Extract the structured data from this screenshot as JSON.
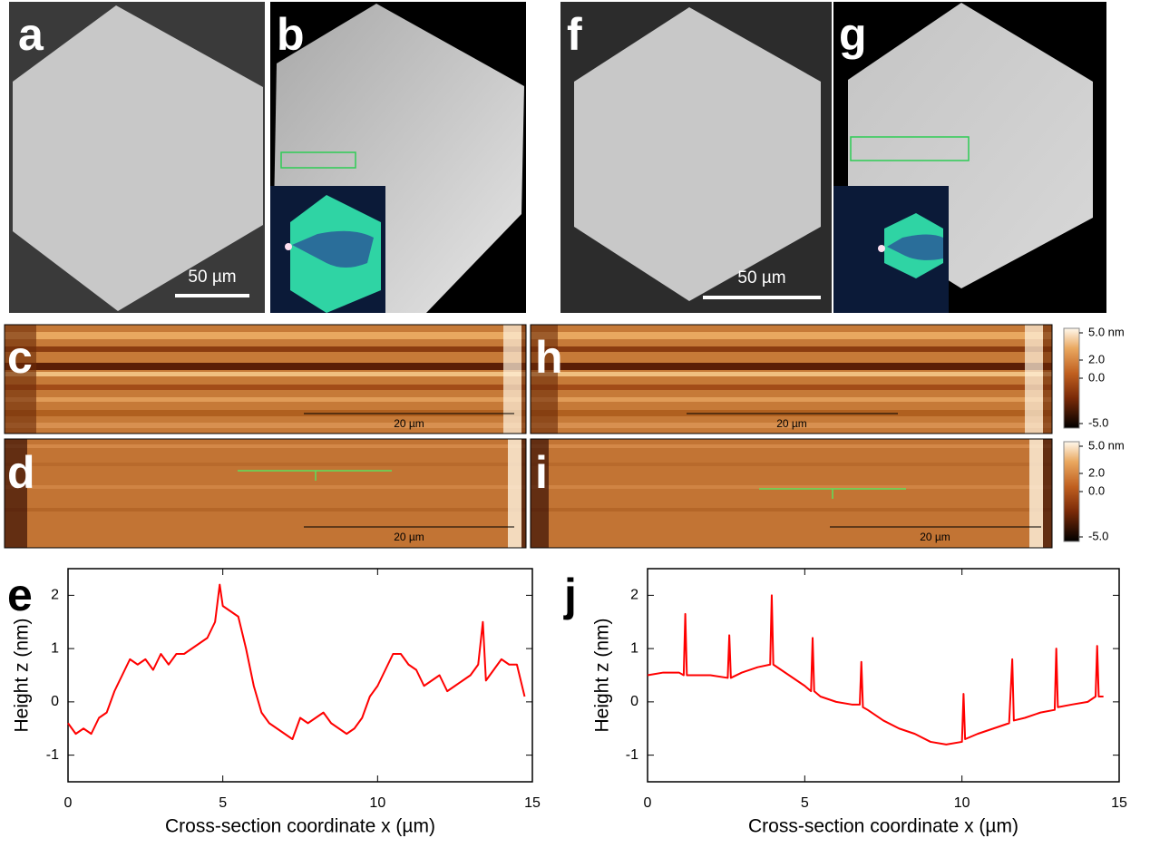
{
  "sem_panels": [
    {
      "label": "a",
      "scale_bar": "50 µm"
    },
    {
      "label": "b"
    },
    {
      "label": "f",
      "scale_bar": "50 µm"
    },
    {
      "label": "g"
    }
  ],
  "afm_panels": [
    {
      "label": "c",
      "scale_bar": "20 µm"
    },
    {
      "label": "h",
      "scale_bar": "20 µm"
    },
    {
      "label": "d",
      "scale_bar": "20 µm"
    },
    {
      "label": "i",
      "scale_bar": "20 µm"
    }
  ],
  "colorbar": {
    "lim": [
      -5.5,
      5.5
    ],
    "ticks": [
      {
        "value": 5,
        "label": "5.0 nm"
      },
      {
        "value": 2,
        "label": "2.0"
      },
      {
        "value": 0,
        "label": "0.0"
      },
      {
        "value": -5,
        "label": "-5.0"
      }
    ]
  },
  "chart_data": [
    {
      "type": "line",
      "panel_label": "e",
      "xlabel": "Cross-section coordinate x (µm)",
      "ylabel": "Height z (nm)",
      "x": [
        0,
        0.25,
        0.5,
        0.75,
        1,
        1.25,
        1.5,
        1.75,
        2,
        2.25,
        2.5,
        2.75,
        3,
        3.25,
        3.5,
        3.75,
        4,
        4.25,
        4.5,
        4.75,
        4.9,
        5,
        5.25,
        5.5,
        5.75,
        6,
        6.25,
        6.5,
        6.75,
        7,
        7.25,
        7.5,
        7.75,
        8,
        8.25,
        8.5,
        8.75,
        9,
        9.25,
        9.5,
        9.75,
        10,
        10.25,
        10.5,
        10.75,
        11,
        11.25,
        11.5,
        11.75,
        12,
        12.25,
        12.5,
        12.75,
        13,
        13.25,
        13.4,
        13.5,
        13.75,
        14,
        14.25,
        14.5,
        14.75
      ],
      "series": [
        {
          "color": "#ff0000",
          "values": [
            -0.4,
            -0.6,
            -0.5,
            -0.6,
            -0.3,
            -0.2,
            0.2,
            0.5,
            0.8,
            0.7,
            0.8,
            0.6,
            0.9,
            0.7,
            0.9,
            0.9,
            1.0,
            1.1,
            1.2,
            1.5,
            2.2,
            1.8,
            1.7,
            1.6,
            1.0,
            0.3,
            -0.2,
            -0.4,
            -0.5,
            -0.6,
            -0.7,
            -0.3,
            -0.4,
            -0.3,
            -0.2,
            -0.4,
            -0.5,
            -0.6,
            -0.5,
            -0.3,
            0.1,
            0.3,
            0.6,
            0.9,
            0.9,
            0.7,
            0.6,
            0.3,
            0.4,
            0.5,
            0.2,
            0.3,
            0.4,
            0.5,
            0.7,
            1.5,
            0.4,
            0.6,
            0.8,
            0.7,
            0.7,
            0.1
          ]
        }
      ],
      "xlim": [
        0,
        15
      ],
      "ylim": [
        -1.5,
        2.5
      ],
      "xticks": [
        0,
        5,
        10,
        15
      ],
      "yticks": [
        -1,
        0,
        1,
        2
      ]
    },
    {
      "type": "line",
      "panel_label": "j",
      "xlabel": "Cross-section coordinate x (µm)",
      "ylabel": "Height z (nm)",
      "x": [
        0,
        0.5,
        1,
        1.15,
        1.2,
        1.25,
        1.5,
        2,
        2.55,
        2.6,
        2.65,
        3,
        3.5,
        3.9,
        3.95,
        4,
        4.5,
        5,
        5.2,
        5.25,
        5.3,
        5.5,
        6,
        6.5,
        6.75,
        6.8,
        6.85,
        7,
        7.5,
        8,
        8.5,
        9,
        9.5,
        10,
        10.05,
        10.1,
        10.5,
        11,
        11.5,
        11.6,
        11.65,
        12,
        12.5,
        12.95,
        13,
        13.05,
        13.5,
        14,
        14.25,
        14.3,
        14.35,
        14.5
      ],
      "series": [
        {
          "color": "#ff0000",
          "values": [
            0.5,
            0.55,
            0.55,
            0.5,
            1.65,
            0.5,
            0.5,
            0.5,
            0.45,
            1.25,
            0.45,
            0.55,
            0.65,
            0.7,
            2.0,
            0.7,
            0.5,
            0.3,
            0.2,
            1.2,
            0.2,
            0.1,
            0.0,
            -0.05,
            -0.05,
            0.75,
            -0.1,
            -0.15,
            -0.35,
            -0.5,
            -0.6,
            -0.75,
            -0.8,
            -0.75,
            0.15,
            -0.7,
            -0.6,
            -0.5,
            -0.4,
            0.8,
            -0.35,
            -0.3,
            -0.2,
            -0.15,
            1.0,
            -0.1,
            -0.05,
            0.0,
            0.1,
            1.05,
            0.1,
            0.1
          ]
        }
      ],
      "xlim": [
        0,
        15
      ],
      "ylim": [
        -1.5,
        2.5
      ],
      "xticks": [
        0,
        5,
        10,
        15
      ],
      "yticks": [
        -1,
        0,
        1,
        2
      ]
    }
  ]
}
